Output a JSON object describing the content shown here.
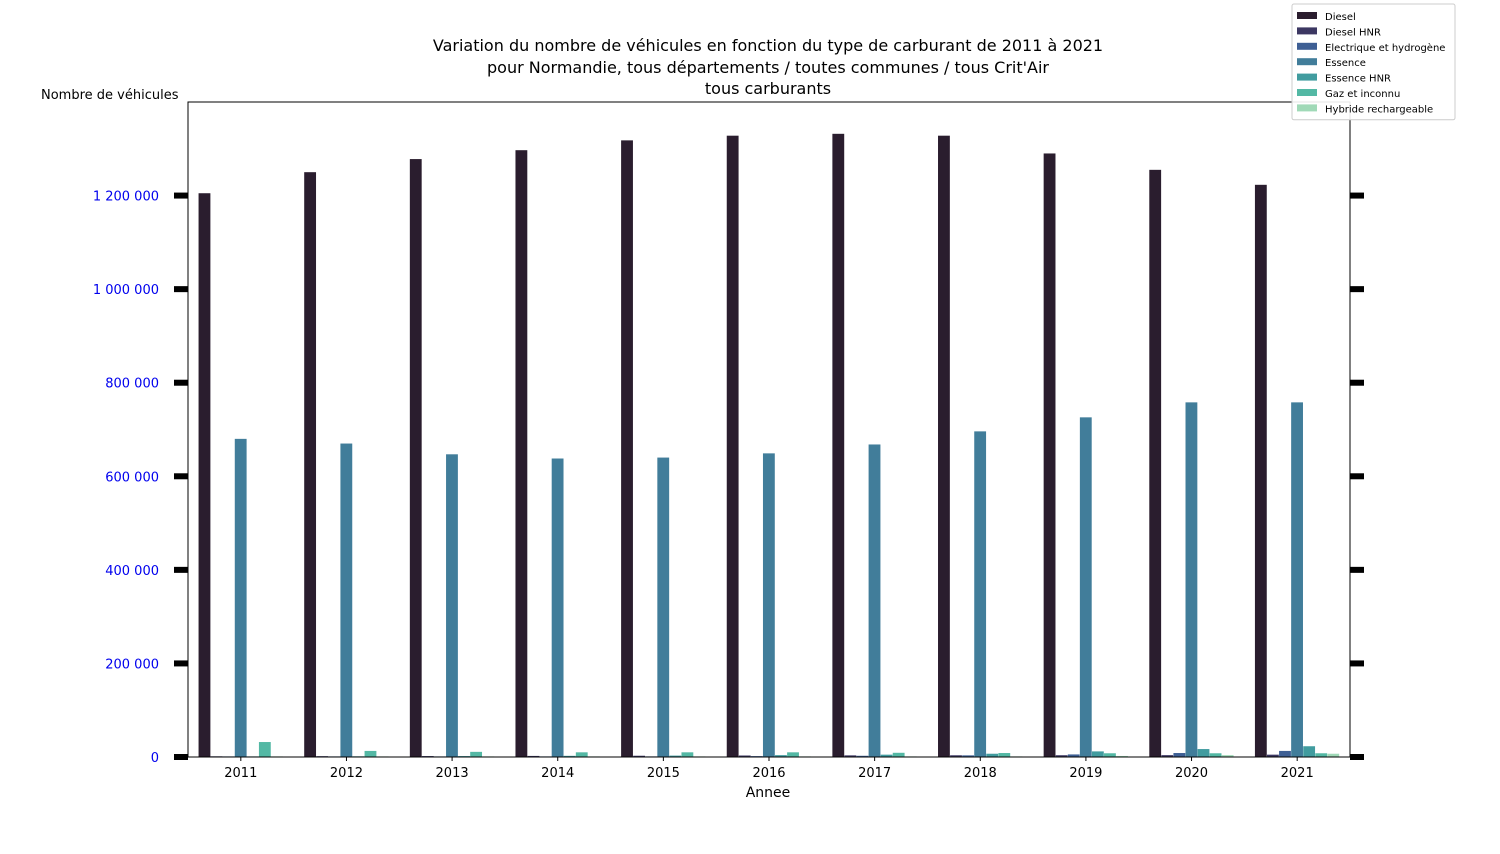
{
  "chart_data": {
    "type": "bar",
    "title_lines": [
      "Variation du nombre de véhicules en fonction du type de carburant de 2011 à 2021",
      "pour Normandie, tous départements / toutes communes / tous Crit'Air",
      "tous carburants"
    ],
    "xlabel": "Annee",
    "ylabel": "Nombre de véhicules",
    "ylim": [
      0,
      1400000
    ],
    "yticks": [
      0,
      200000,
      400000,
      600000,
      800000,
      1000000,
      1200000
    ],
    "ytick_labels": [
      "0",
      "200 000",
      "400 000",
      "600 000",
      "800 000",
      "1 000 000",
      "1 200 000"
    ],
    "ytick_color": "#0000ee",
    "grid": false,
    "legend_position": "top-right",
    "categories": [
      "2011",
      "2012",
      "2013",
      "2014",
      "2015",
      "2016",
      "2017",
      "2018",
      "2019",
      "2020",
      "2021"
    ],
    "series": [
      {
        "name": "Diesel",
        "color": "#2a1d2e",
        "values": [
          1205000,
          1250000,
          1278000,
          1297000,
          1318000,
          1328000,
          1332000,
          1328000,
          1290000,
          1255000,
          1223000
        ]
      },
      {
        "name": "Diesel HNR",
        "color": "#3c3762",
        "values": [
          1500,
          1800,
          2000,
          2300,
          2700,
          3200,
          3500,
          3700,
          3800,
          4000,
          5000
        ]
      },
      {
        "name": "Electrique et hydrogène",
        "color": "#3e5f94",
        "values": [
          200,
          400,
          600,
          900,
          1300,
          1900,
          2600,
          3500,
          5500,
          8500,
          13000
        ]
      },
      {
        "name": "Essence",
        "color": "#417d9a",
        "values": [
          680000,
          670000,
          647000,
          638000,
          640000,
          649000,
          668000,
          696000,
          726000,
          758000,
          758000
        ]
      },
      {
        "name": "Essence HNR",
        "color": "#419c9f",
        "values": [
          1000,
          1500,
          2000,
          2500,
          3000,
          4000,
          5000,
          7000,
          12000,
          17000,
          23000
        ]
      },
      {
        "name": "Gaz et inconnu",
        "color": "#53b8a4",
        "values": [
          32000,
          13000,
          11000,
          10000,
          10000,
          10000,
          9000,
          8500,
          8000,
          8000,
          8000
        ]
      },
      {
        "name": "Hybride rechargeable",
        "color": "#a0d9b7",
        "values": [
          100,
          200,
          300,
          400,
          500,
          700,
          900,
          1300,
          2200,
          4000,
          7000
        ]
      }
    ]
  }
}
